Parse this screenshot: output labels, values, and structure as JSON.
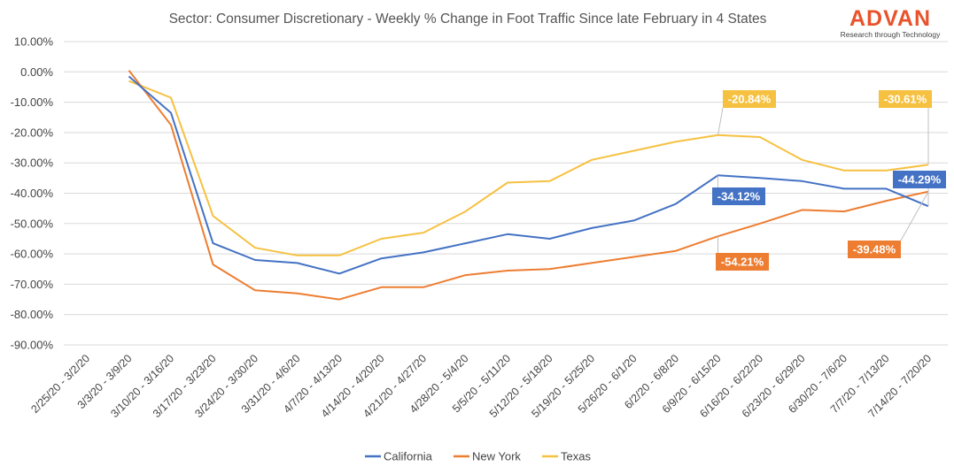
{
  "brand": {
    "name": "ADVAN",
    "tagline": "Research through Technology",
    "color": "#e8532c"
  },
  "chart_data": {
    "type": "line",
    "title": "Sector: Consumer Discretionary - Weekly % Change in Foot Traffic Since late February in 4 States",
    "xlabel": "",
    "ylabel": "",
    "ylim": [
      -90,
      10
    ],
    "yticks": [
      10,
      0,
      -10,
      -20,
      -30,
      -40,
      -50,
      -60,
      -70,
      -80,
      -90
    ],
    "ytick_labels": [
      "10.00%",
      "0.00%",
      "-10.00%",
      "-20.00%",
      "-30.00%",
      "-40.00%",
      "-50.00%",
      "-60.00%",
      "-70.00%",
      "-80.00%",
      "-90.00%"
    ],
    "grid": true,
    "legend_position": "bottom-center",
    "categories": [
      "2/25/20 - 3/2/20",
      "3/3/20 - 3/9/20",
      "3/10/20 - 3/16/20",
      "3/17/20 - 3/23/20",
      "3/24/20 - 3/30/20",
      "3/31/20 - 4/6/20",
      "4/7/20 - 4/13/20",
      "4/14/20 - 4/20/20",
      "4/21/20 - 4/27/20",
      "4/28/20 - 5/4/20",
      "5/5/20 - 5/11/20",
      "5/12/20 - 5/18/20",
      "5/19/20 - 5/25/20",
      "5/26/20 - 6/1/20",
      "6/2/20 - 6/8/20",
      "6/9/20 - 6/15/20",
      "6/16/20 - 6/22/20",
      "6/23/20 - 6/29/20",
      "6/30/20 - 7/6/20",
      "7/7/20 - 7/13/20",
      "7/14/20 - 7/20/20"
    ],
    "series": [
      {
        "name": "California",
        "color": "#4472c4",
        "values": [
          null,
          -1.5,
          -13.5,
          -56.5,
          -62,
          -63,
          -66.5,
          -61.5,
          -59.5,
          -56.5,
          -53.5,
          -55,
          -51.5,
          -49,
          -43.5,
          -34.12,
          -35,
          -36,
          -38.5,
          -38.5,
          -44.29
        ]
      },
      {
        "name": "New York",
        "color": "#ed7d31",
        "values": [
          null,
          0.5,
          -17.5,
          -63.5,
          -72,
          -73,
          -75,
          -71,
          -71,
          -67,
          -65.5,
          -65,
          -63,
          -61,
          -59,
          -54.21,
          -50,
          -45.5,
          -46,
          -42.5,
          -39.48
        ]
      },
      {
        "name": "Texas",
        "color": "#f6c141",
        "values": [
          null,
          -3,
          -8.5,
          -47.5,
          -58,
          -60.5,
          -60.5,
          -55,
          -53,
          -46,
          -36.5,
          -36,
          -29,
          -26,
          -23,
          -20.84,
          -21.5,
          -29,
          -32.5,
          -32.5,
          -30.61
        ]
      }
    ],
    "annotations": [
      {
        "series": "Texas",
        "category_index": 15,
        "text": "-20.84%",
        "color": "#f6c141"
      },
      {
        "series": "Texas",
        "category_index": 20,
        "text": "-30.61%",
        "color": "#f6c141"
      },
      {
        "series": "California",
        "category_index": 15,
        "text": "-34.12%",
        "color": "#4472c4"
      },
      {
        "series": "California",
        "category_index": 20,
        "text": "-44.29%",
        "color": "#4472c4"
      },
      {
        "series": "New York",
        "category_index": 15,
        "text": "-54.21%",
        "color": "#ed7d31"
      },
      {
        "series": "New York",
        "category_index": 20,
        "text": "-39.48%",
        "color": "#ed7d31"
      }
    ]
  }
}
